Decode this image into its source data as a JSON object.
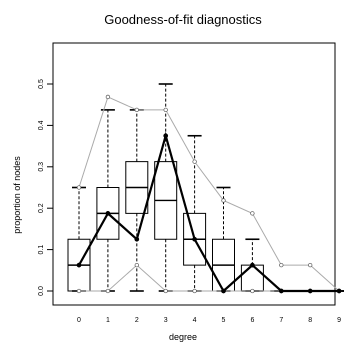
{
  "chart_data": {
    "type": "boxplot",
    "title": "Goodness-of-fit diagnostics",
    "xlabel": "degree",
    "ylabel": "proportion of nodes",
    "categories": [
      "0",
      "1",
      "2",
      "3",
      "4",
      "5",
      "6",
      "7",
      "8",
      "9"
    ],
    "ylim": [
      0,
      0.5
    ],
    "yticks": [
      "0.0",
      "0.1",
      "0.2",
      "0.3",
      "0.4",
      "0.5"
    ],
    "grid": false,
    "boxes": [
      {
        "x": "0",
        "min": 0.0,
        "q1": 0.0,
        "median": 0.0625,
        "q3": 0.125,
        "max": 0.25
      },
      {
        "x": "1",
        "min": 0.0,
        "q1": 0.125,
        "median": 0.1875,
        "q3": 0.25,
        "max": 0.4375
      },
      {
        "x": "2",
        "min": 0.0,
        "q1": 0.1875,
        "median": 0.25,
        "q3": 0.3125,
        "max": 0.4375
      },
      {
        "x": "3",
        "min": 0.0,
        "q1": 0.125,
        "median": 0.21875,
        "q3": 0.3125,
        "max": 0.5
      },
      {
        "x": "4",
        "min": 0.0,
        "q1": 0.0625,
        "median": 0.125,
        "q3": 0.1875,
        "max": 0.375
      },
      {
        "x": "5",
        "min": 0.0,
        "q1": 0.0,
        "median": 0.0625,
        "q3": 0.125,
        "max": 0.25
      },
      {
        "x": "6",
        "min": 0.0,
        "q1": 0.0,
        "median": 0.0,
        "q3": 0.0625,
        "max": 0.125
      },
      {
        "x": "7",
        "min": 0.0,
        "q1": 0.0,
        "median": 0.0,
        "q3": 0.0,
        "max": 0.0
      },
      {
        "x": "8",
        "min": 0.0,
        "q1": 0.0,
        "median": 0.0,
        "q3": 0.0,
        "max": 0.0
      },
      {
        "x": "9",
        "min": 0.0,
        "q1": 0.0,
        "median": 0.0,
        "q3": 0.0,
        "max": 0.0
      }
    ],
    "series": [
      {
        "style": "observed",
        "color": "#000000",
        "values": [
          0.0625,
          0.1875,
          0.125,
          0.375,
          0.125,
          0.0,
          0.0625,
          0.0,
          0.0,
          0.0
        ]
      },
      {
        "style": "upper-bound",
        "color": "#aaaaaa",
        "values": [
          0.25,
          0.46875,
          0.4375,
          0.4375,
          0.3125,
          0.21875,
          0.1875,
          0.0625,
          0.0625,
          0.0
        ]
      },
      {
        "style": "lower-bound",
        "color": "#aaaaaa",
        "values": [
          0.0,
          0.0,
          0.0625,
          0.0,
          0.0,
          0.0,
          0.0,
          0.0,
          0.0,
          0.0
        ]
      }
    ]
  }
}
